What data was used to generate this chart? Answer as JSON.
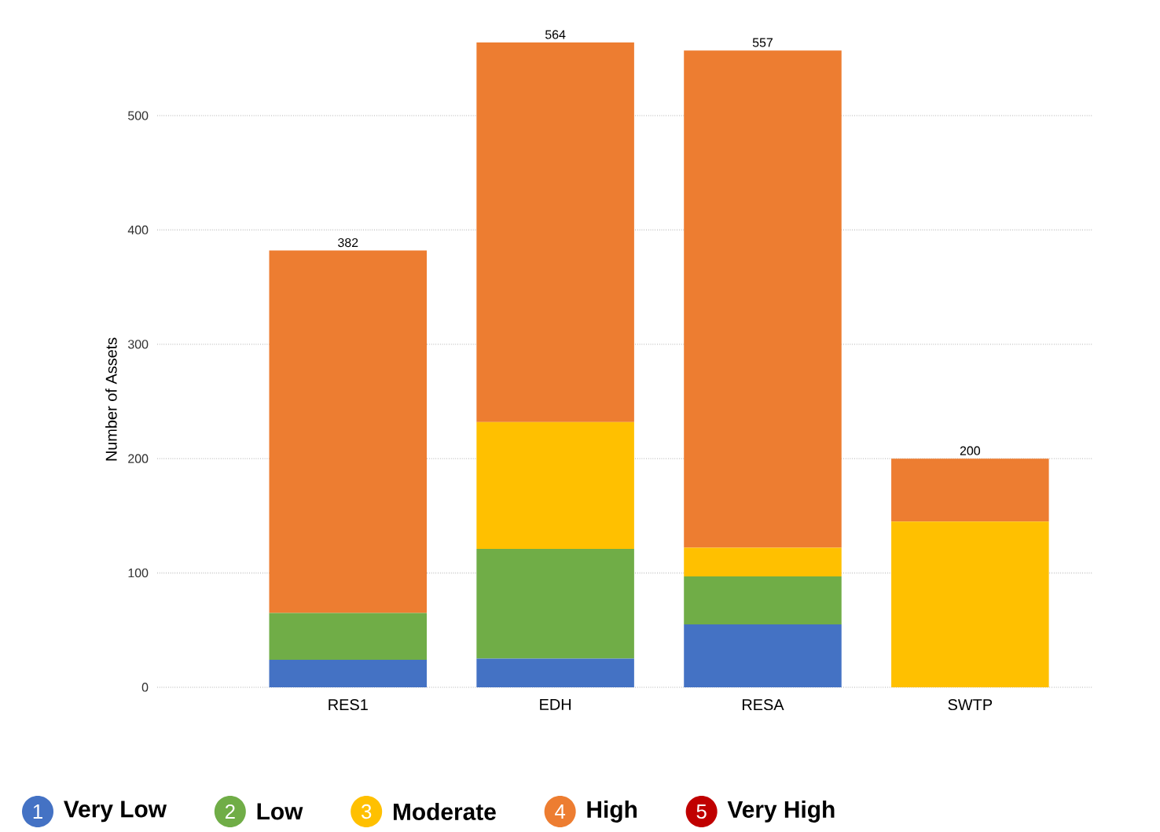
{
  "chart_data": {
    "type": "bar",
    "stacked": true,
    "ylabel": "Number of Assets",
    "categories": [
      "RES1",
      "EDH",
      "RESA",
      "SWTP"
    ],
    "series": [
      {
        "name": "Very Low",
        "color": "#4472c4",
        "values": [
          24,
          25,
          55,
          0
        ]
      },
      {
        "name": "Low",
        "color": "#70ad47",
        "values": [
          41,
          96,
          42,
          0
        ]
      },
      {
        "name": "Moderate",
        "color": "#ffc000",
        "values": [
          0,
          111,
          25,
          145
        ]
      },
      {
        "name": "High",
        "color": "#ed7d31",
        "values": [
          317,
          332,
          435,
          55
        ]
      },
      {
        "name": "Very High",
        "color": "#c00000",
        "values": [
          0,
          0,
          0,
          0
        ]
      }
    ],
    "totals": [
      "382",
      "564",
      "557",
      "200"
    ],
    "ylim": [
      0,
      564
    ],
    "yticks": [
      0,
      100,
      200,
      300,
      400,
      500
    ],
    "grid": "y",
    "legend": "bottom",
    "annotations": [
      "1",
      "2",
      "3",
      "4",
      "5"
    ]
  }
}
